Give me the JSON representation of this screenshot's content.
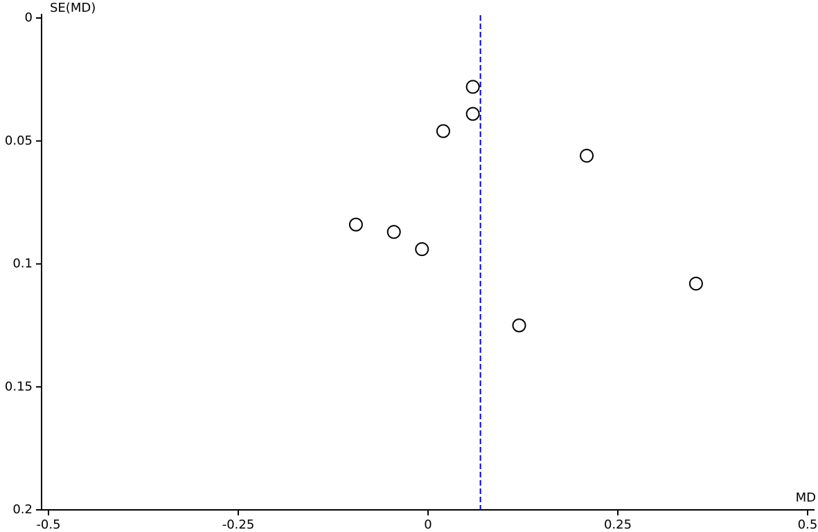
{
  "chart_data": {
    "type": "scatter",
    "xlabel": "MD",
    "ylabel": "SE(MD)",
    "x": [
      0.059,
      0.059,
      0.02,
      0.209,
      -0.095,
      -0.045,
      -0.008,
      0.353,
      0.12
    ],
    "values": [
      0.028,
      0.039,
      0.046,
      0.056,
      0.084,
      0.087,
      0.094,
      0.108,
      0.125
    ],
    "color": "#000000",
    "summary_md": 0.069,
    "summary_color": "#0000cc",
    "xlim": [
      -0.5,
      0.5
    ],
    "xticks": [
      -0.5,
      -0.25,
      0,
      0.25,
      0.5
    ],
    "ylim": [
      0,
      0.2
    ],
    "yticks": [
      0,
      0.05,
      0.1,
      0.15,
      0.2
    ],
    "y_inverted": true
  }
}
